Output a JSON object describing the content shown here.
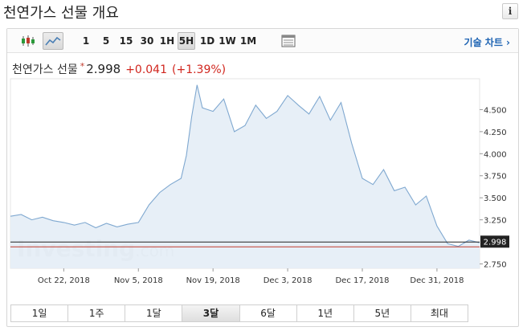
{
  "page": {
    "title": "천연가스 선물 개요",
    "info_label": "i"
  },
  "toolbar": {
    "intervals": [
      "1",
      "5",
      "15",
      "30",
      "1H",
      "5H",
      "1D",
      "1W",
      "1M"
    ],
    "active_interval": "5H",
    "advanced_chart_label": "기술 차트 ›"
  },
  "quote": {
    "name": "천연가스 선물",
    "star": "*",
    "last": "2.998",
    "change": "+0.041",
    "change_pct": "(+1.39%)"
  },
  "watermark": {
    "brand": "Investing",
    "suffix": ".com"
  },
  "ranges": {
    "items": [
      "1일",
      "1주",
      "1달",
      "3달",
      "6달",
      "1년",
      "5년",
      "최대"
    ],
    "active": "3달"
  },
  "colors": {
    "line": "#7fa8d0",
    "fill": "#e4edf6",
    "last_price_line": "#c0392b",
    "last_price_box": "#222222"
  },
  "chart_data": {
    "type": "area",
    "x_tick_labels": [
      "Oct 22, 2018",
      "Nov 5, 2018",
      "Nov 19, 2018",
      "Dec 3, 2018",
      "Dec 17, 2018",
      "Dec 31, 2018"
    ],
    "y_tick_labels": [
      "4.500",
      "4.250",
      "4.000",
      "3.750",
      "3.500",
      "3.250",
      "2.750"
    ],
    "ylim": [
      2.7,
      4.85
    ],
    "x_range": [
      "2018-10-12",
      "2019-01-08"
    ],
    "last_price": 2.998,
    "last_price_label": "2.998",
    "grid": false,
    "x": [
      "2018-10-12",
      "2018-10-14",
      "2018-10-16",
      "2018-10-18",
      "2018-10-20",
      "2018-10-22",
      "2018-10-24",
      "2018-10-26",
      "2018-10-28",
      "2018-10-30",
      "2018-11-01",
      "2018-11-03",
      "2018-11-05",
      "2018-11-07",
      "2018-11-09",
      "2018-11-11",
      "2018-11-13",
      "2018-11-14",
      "2018-11-15",
      "2018-11-16",
      "2018-11-17",
      "2018-11-19",
      "2018-11-21",
      "2018-11-23",
      "2018-11-25",
      "2018-11-27",
      "2018-11-29",
      "2018-12-01",
      "2018-12-03",
      "2018-12-05",
      "2018-12-07",
      "2018-12-09",
      "2018-12-11",
      "2018-12-13",
      "2018-12-15",
      "2018-12-17",
      "2018-12-19",
      "2018-12-21",
      "2018-12-23",
      "2018-12-25",
      "2018-12-27",
      "2018-12-29",
      "2018-12-31",
      "2019-01-02",
      "2019-01-04",
      "2019-01-06",
      "2019-01-08"
    ],
    "values": [
      3.29,
      3.31,
      3.25,
      3.28,
      3.24,
      3.22,
      3.19,
      3.22,
      3.16,
      3.21,
      3.17,
      3.2,
      3.22,
      3.42,
      3.56,
      3.65,
      3.72,
      3.98,
      4.42,
      4.78,
      4.52,
      4.48,
      4.62,
      4.25,
      4.32,
      4.55,
      4.4,
      4.48,
      4.66,
      4.55,
      4.45,
      4.65,
      4.38,
      4.58,
      4.12,
      3.72,
      3.65,
      3.82,
      3.58,
      3.62,
      3.42,
      3.52,
      3.18,
      2.98,
      2.95,
      3.02,
      2.99
    ]
  }
}
